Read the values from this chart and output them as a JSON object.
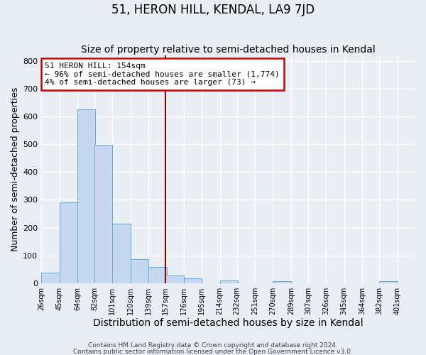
{
  "title": "51, HERON HILL, KENDAL, LA9 7JD",
  "subtitle": "Size of property relative to semi-detached houses in Kendal",
  "xlabel": "Distribution of semi-detached houses by size in Kendal",
  "ylabel": "Number of semi-detached properties",
  "bin_labels": [
    "26sqm",
    "45sqm",
    "64sqm",
    "82sqm",
    "101sqm",
    "120sqm",
    "139sqm",
    "157sqm",
    "176sqm",
    "195sqm",
    "214sqm",
    "232sqm",
    "251sqm",
    "270sqm",
    "289sqm",
    "307sqm",
    "326sqm",
    "345sqm",
    "364sqm",
    "382sqm",
    "401sqm"
  ],
  "bin_edges": [
    26,
    45,
    64,
    82,
    101,
    120,
    139,
    157,
    176,
    195,
    214,
    232,
    251,
    270,
    289,
    307,
    326,
    345,
    364,
    382,
    401
  ],
  "counts": [
    38,
    290,
    625,
    497,
    213,
    85,
    57,
    28,
    17,
    0,
    10,
    0,
    0,
    8,
    0,
    0,
    0,
    0,
    0,
    8,
    0
  ],
  "bar_color": "#c5d8ef",
  "bar_edge_color": "#6aabd2",
  "property_line_x": 157,
  "property_line_color": "#8b0000",
  "annotation_title": "51 HERON HILL: 154sqm",
  "annotation_line1": "← 96% of semi-detached houses are smaller (1,774)",
  "annotation_line2": "4% of semi-detached houses are larger (73) →",
  "annotation_box_color": "#cc0000",
  "ylim": [
    0,
    820
  ],
  "yticks": [
    0,
    100,
    200,
    300,
    400,
    500,
    600,
    700,
    800
  ],
  "footnote1": "Contains HM Land Registry data © Crown copyright and database right 2024.",
  "footnote2": "Contains public sector information licensed under the Open Government Licence v3.0.",
  "background_color": "#e8eef4",
  "grid_color": "#ffffff",
  "title_fontsize": 12,
  "subtitle_fontsize": 10,
  "axis_label_fontsize": 9,
  "tick_fontsize": 8,
  "footnote_fontsize": 6.5
}
